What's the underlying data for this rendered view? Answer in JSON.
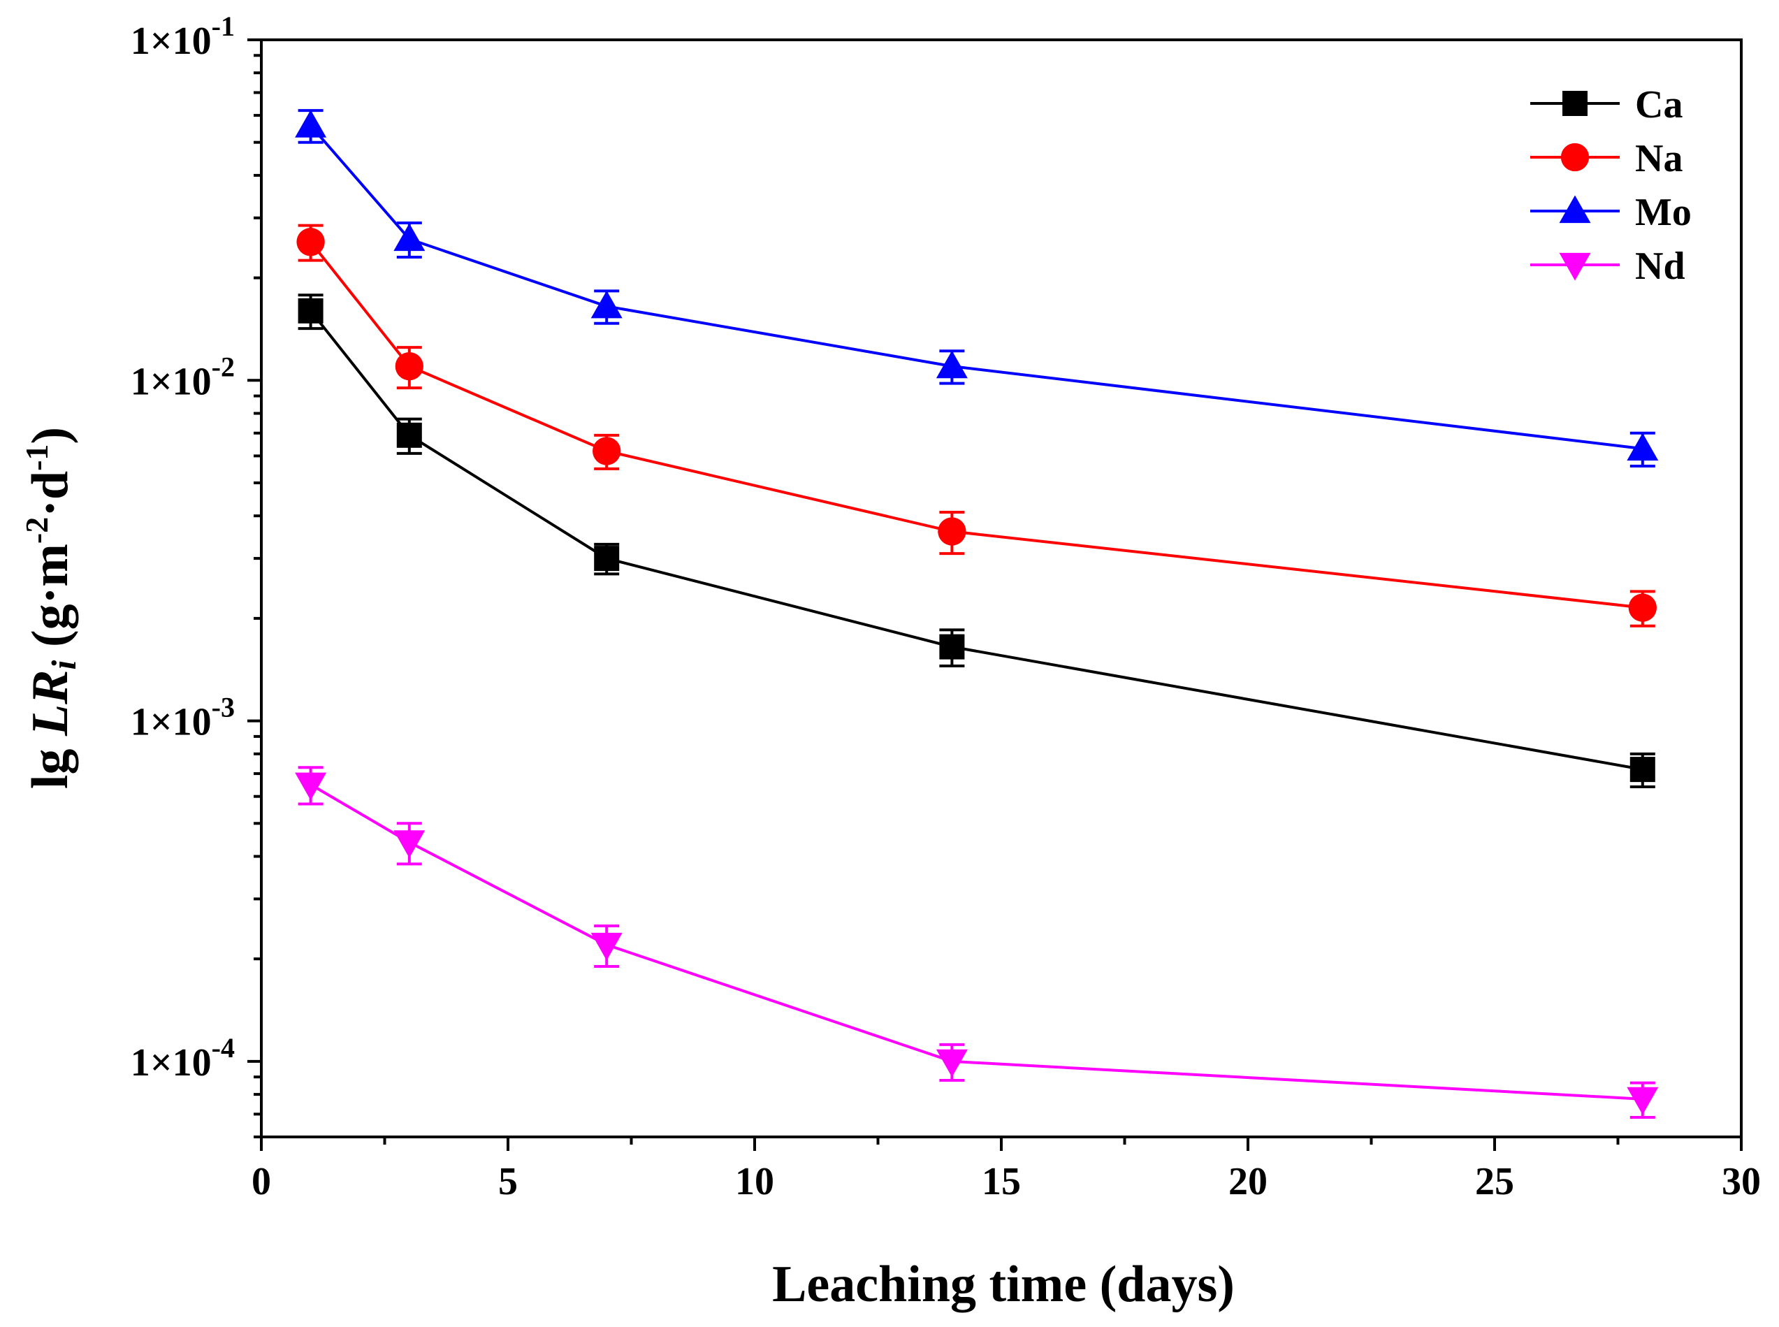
{
  "chart_data": {
    "type": "line",
    "title": "",
    "xlabel": "Leaching time (days)",
    "ylabel": {
      "prefix": "lg ",
      "italic": "LR",
      "subscript": "i",
      "units_open": " (g·m",
      "exp1": "-2",
      "middle": "·d",
      "exp2": "-1",
      "units_close": ")"
    },
    "xlim": [
      0,
      30
    ],
    "ylim": [
      6e-05,
      0.1
    ],
    "yscale": "log",
    "x_ticks": [
      0,
      5,
      10,
      15,
      20,
      25,
      30
    ],
    "y_ticks": [
      {
        "value": 0.1,
        "mantissa": "1×10",
        "exp": "-1"
      },
      {
        "value": 0.01,
        "mantissa": "1×10",
        "exp": "-2"
      },
      {
        "value": 0.001,
        "mantissa": "1×10",
        "exp": "-3"
      },
      {
        "value": 0.0001,
        "mantissa": "1×10",
        "exp": "-4"
      }
    ],
    "x": [
      1,
      3,
      7,
      14,
      28
    ],
    "legend_position": "top-right",
    "series": [
      {
        "name": "Ca",
        "color": "#000000",
        "marker": "square",
        "values": [
          0.016,
          0.0069,
          0.003,
          0.00165,
          0.00072
        ],
        "errors": [
          0.0018,
          0.0008,
          0.0003,
          0.0002,
          8e-05
        ]
      },
      {
        "name": "Na",
        "color": "#ff0000",
        "marker": "circle",
        "values": [
          0.0255,
          0.011,
          0.0062,
          0.0036,
          0.00215
        ],
        "errors": [
          0.003,
          0.0015,
          0.0007,
          0.0005,
          0.00025
        ]
      },
      {
        "name": "Mo",
        "color": "#0000ff",
        "marker": "triangle-up",
        "values": [
          0.056,
          0.026,
          0.0165,
          0.011,
          0.0063
        ],
        "errors": [
          0.006,
          0.003,
          0.0018,
          0.0012,
          0.0007
        ]
      },
      {
        "name": "Nd",
        "color": "#ff00ff",
        "marker": "triangle-down",
        "values": [
          0.00065,
          0.00044,
          0.00022,
          0.0001,
          7.75e-05
        ],
        "errors": [
          8e-05,
          6e-05,
          3e-05,
          1.2e-05,
          9e-06
        ]
      }
    ]
  }
}
